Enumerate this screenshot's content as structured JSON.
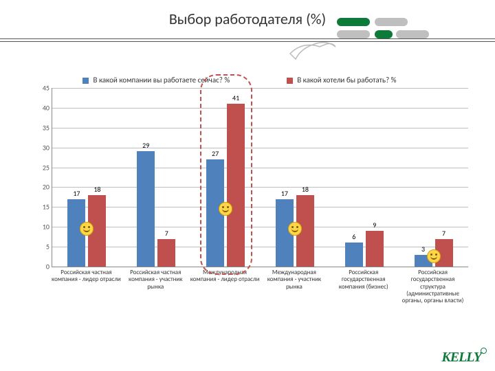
{
  "title": "Выбор работодателя (%)",
  "legend": {
    "series1": {
      "label": "В какой компании вы работаете сейчас? %",
      "color": "#4f81bd"
    },
    "series2": {
      "label": "В какой хотели бы работать?  %",
      "color": "#c0504d"
    }
  },
  "yaxis": {
    "min": 0,
    "max": 45,
    "step": 5
  },
  "categories": [
    {
      "label": "Российская частная компания - лидер отрасли",
      "v1": 17,
      "v2": 18
    },
    {
      "label": "Российская частная компания - участник рынка",
      "v1": 29,
      "v2": 7
    },
    {
      "label": "Международная компания - лидер отрасли",
      "v1": 27,
      "v2": 41
    },
    {
      "label": "Международная компания - участник рынка",
      "v1": 17,
      "v2": 18
    },
    {
      "label": "Российская государственная компания (бизнес)",
      "v1": 6,
      "v2": 9
    },
    {
      "label": "Российская государственная структура (административные органы, органы власти)",
      "v1": 3,
      "v2": 7
    }
  ],
  "colors": {
    "grid": "#bfbfbf",
    "bg": "#ffffff"
  },
  "brand": "KELLY",
  "dash_highlight_index": 2
}
